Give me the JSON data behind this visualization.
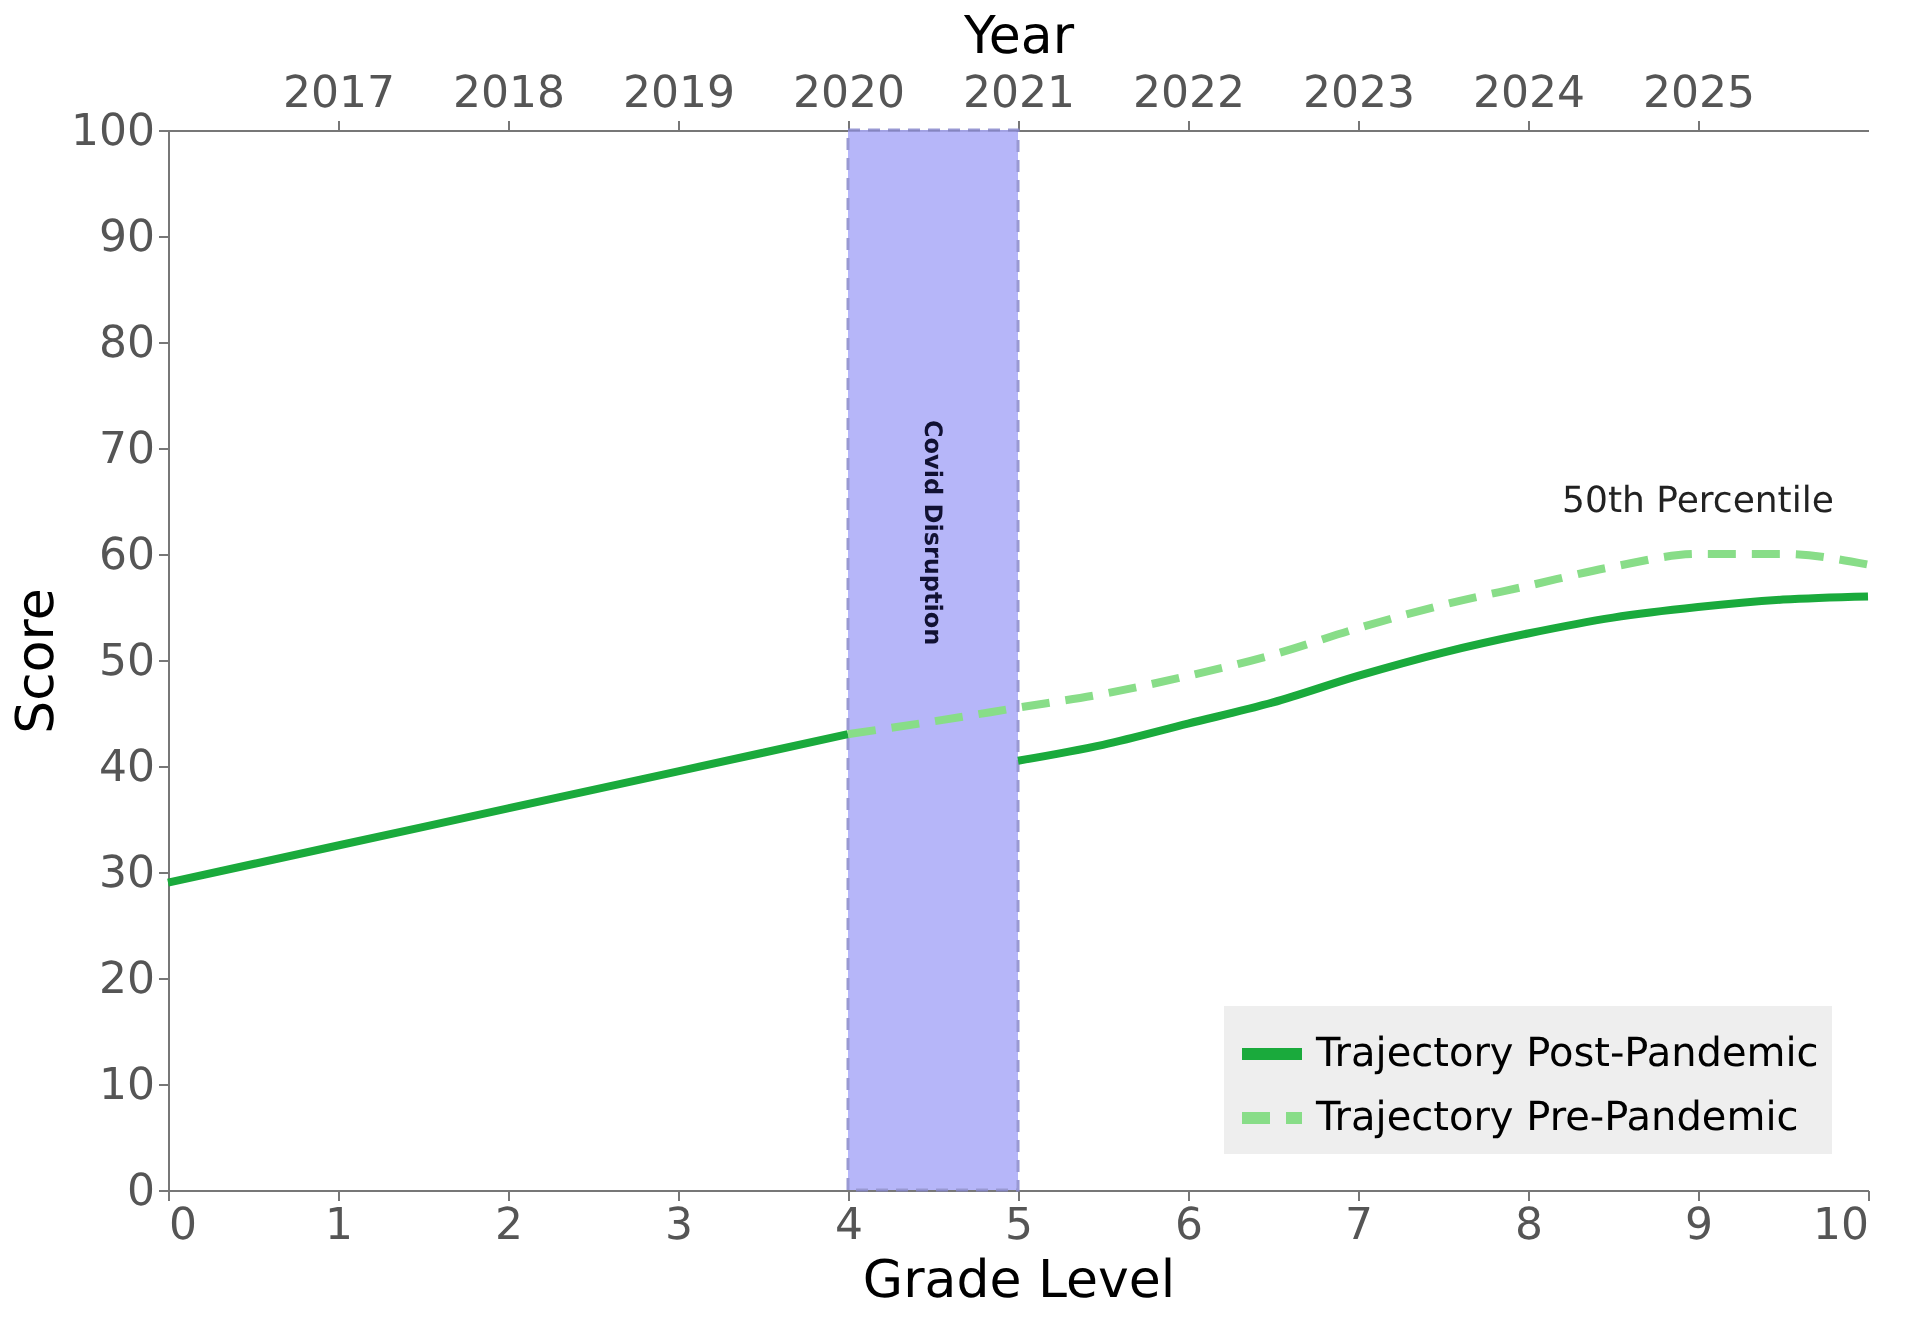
{
  "chart_data": {
    "type": "line",
    "xlabel": "Grade Level",
    "ylabel": "Score",
    "x2label": "Year",
    "xlim": [
      0,
      10
    ],
    "xticks": [
      0,
      1,
      2,
      3,
      4,
      5,
      6,
      7,
      8,
      9,
      10
    ],
    "x2lim": [
      2016,
      2026
    ],
    "x2ticks": [
      2017,
      2018,
      2019,
      2020,
      2021,
      2022,
      2023,
      2024,
      2025
    ],
    "ylim": [
      0,
      100
    ],
    "yticks": [
      0,
      10,
      20,
      30,
      40,
      50,
      60,
      70,
      80,
      90,
      100
    ],
    "series": [
      {
        "name": "Trajectory Post-Pandemic",
        "color": "#1aaa3c",
        "line_style": "solid",
        "x": [
          0,
          1,
          2,
          3,
          4,
          4.5,
          5,
          5.5,
          6,
          6.5,
          7,
          7.5,
          8,
          8.5,
          9,
          9.5,
          10
        ],
        "values": [
          29,
          32.5,
          36,
          39.5,
          43,
          null,
          40.5,
          42,
          44,
          46,
          48.5,
          50.7,
          52.5,
          54,
          55,
          55.7,
          56
        ]
      },
      {
        "name": "Trajectory Pre-Pandemic",
        "color": "#88dd88",
        "line_style": "dashed",
        "x": [
          4,
          4.5,
          5,
          5.5,
          6,
          6.5,
          7,
          7.5,
          8,
          8.5,
          9,
          9.5,
          10
        ],
        "values": [
          43,
          44.2,
          45.5,
          46.8,
          48.5,
          50.5,
          53,
          55.2,
          57,
          58.8,
          60,
          60,
          59
        ]
      }
    ],
    "bands": [
      {
        "axis": "x",
        "from": 4,
        "to": 5,
        "label": "Covid Disruption",
        "color": "#aaaaf8"
      }
    ],
    "annotations": [
      {
        "text": "50th Percentile",
        "x": 9,
        "y": 60
      }
    ],
    "legend": "bottom right",
    "grid": false,
    "marker": "none"
  }
}
